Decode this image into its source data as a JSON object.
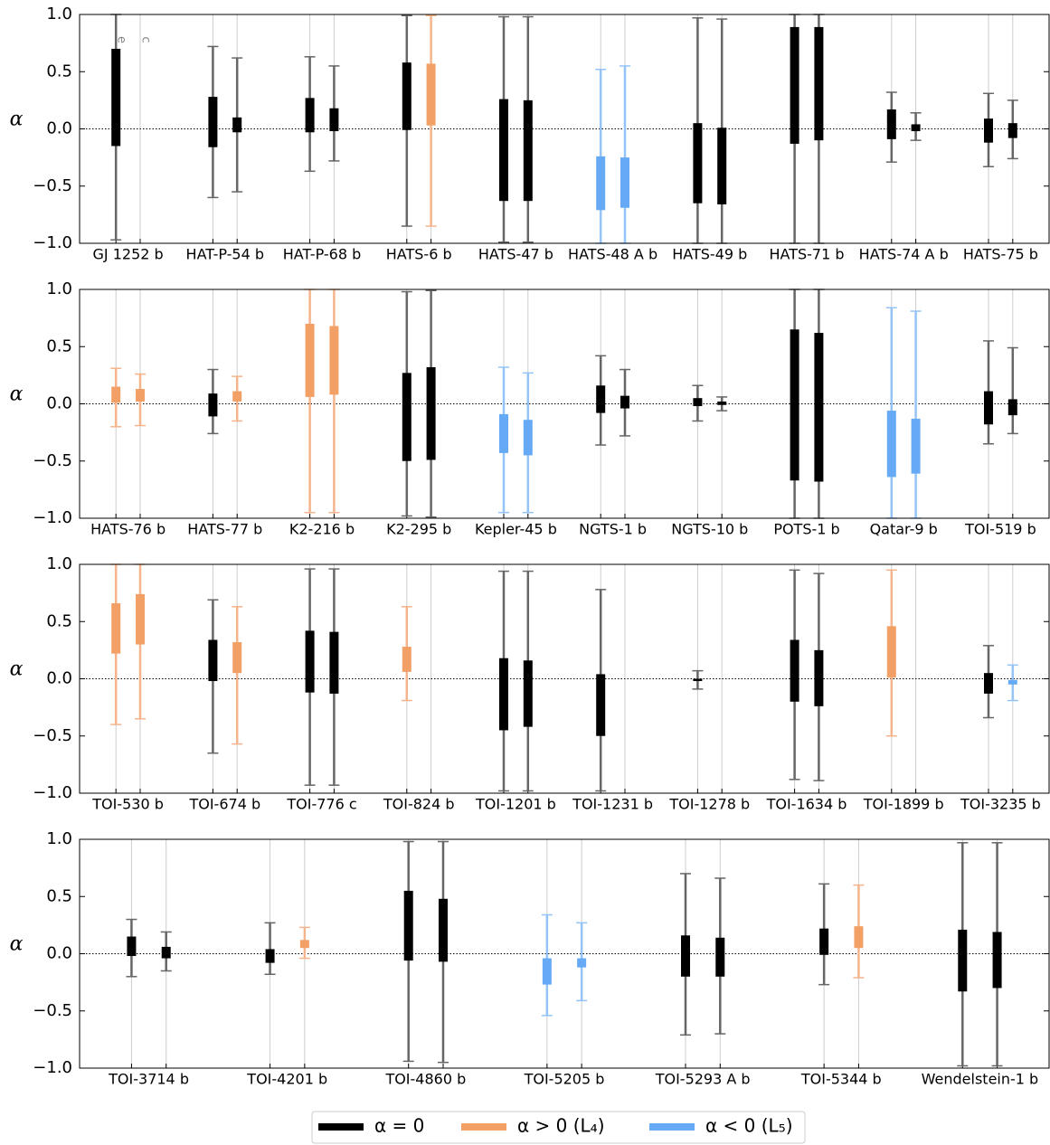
{
  "legend": {
    "entries": [
      {
        "label": "α = 0",
        "color": "#000000",
        "whisker_color": "#666666"
      },
      {
        "label": "α > 0 (L₄)",
        "color": "#f2a066",
        "whisker_color": "#f5b48c"
      },
      {
        "label": "α < 0 (L₅)",
        "color": "#66aaf5",
        "whisker_color": "#94c4f7"
      }
    ]
  },
  "chart_data": [
    {
      "type": "box",
      "y_label": "α",
      "ylim": [
        -1,
        1
      ],
      "hline": 0,
      "yticks": [
        {
          "value": -1,
          "label": "−1.0"
        },
        {
          "value": -0.5,
          "label": "−0.5"
        },
        {
          "value": 0,
          "label": "0.0"
        },
        {
          "value": 0.5,
          "label": "0.5"
        },
        {
          "value": 1,
          "label": "1.0"
        }
      ],
      "annotations": [
        "e",
        "c"
      ],
      "categories": [
        "GJ 1252 b",
        "HAT-P-54 b",
        "HAT-P-68 b",
        "HATS-6 b",
        "HATS-47 b",
        "HATS-48 A b",
        "HATS-49 b",
        "HATS-71 b",
        "HATS-74 A b",
        "HATS-75 b"
      ],
      "estimates": [
        [
          {
            "low": -0.97,
            "q1": -0.15,
            "q3": 0.7,
            "high": 1.0,
            "group": 0
          },
          null
        ],
        [
          {
            "low": -0.6,
            "q1": -0.16,
            "q3": 0.28,
            "high": 0.72,
            "group": 0
          },
          {
            "low": -0.55,
            "q1": -0.03,
            "q3": 0.1,
            "high": 0.62,
            "group": 0
          }
        ],
        [
          {
            "low": -0.37,
            "q1": -0.03,
            "q3": 0.27,
            "high": 0.63,
            "group": 0
          },
          {
            "low": -0.28,
            "q1": -0.02,
            "q3": 0.18,
            "high": 0.55,
            "group": 0
          }
        ],
        [
          {
            "low": -0.85,
            "q1": -0.01,
            "q3": 0.58,
            "high": 0.99,
            "group": 0
          },
          {
            "low": -0.85,
            "q1": 0.03,
            "q3": 0.57,
            "high": 0.99,
            "group": 1
          }
        ],
        [
          {
            "low": -0.99,
            "q1": -0.63,
            "q3": 0.26,
            "high": 0.98,
            "group": 0
          },
          {
            "low": -0.99,
            "q1": -0.63,
            "q3": 0.25,
            "high": 0.98,
            "group": 0
          }
        ],
        [
          {
            "low": -1.0,
            "q1": -0.71,
            "q3": -0.24,
            "high": 0.52,
            "group": 2
          },
          {
            "low": -1.0,
            "q1": -0.69,
            "q3": -0.25,
            "high": 0.55,
            "group": 2
          }
        ],
        [
          {
            "low": -1.0,
            "q1": -0.65,
            "q3": 0.05,
            "high": 0.97,
            "group": 0
          },
          {
            "low": -1.0,
            "q1": -0.66,
            "q3": 0.01,
            "high": 0.96,
            "group": 0
          }
        ],
        [
          {
            "low": -1.0,
            "q1": -0.13,
            "q3": 0.89,
            "high": 1.0,
            "group": 0
          },
          {
            "low": -1.0,
            "q1": -0.1,
            "q3": 0.89,
            "high": 1.0,
            "group": 0
          }
        ],
        [
          {
            "low": -0.29,
            "q1": -0.09,
            "q3": 0.17,
            "high": 0.32,
            "group": 0
          },
          {
            "low": -0.1,
            "q1": -0.02,
            "q3": 0.04,
            "high": 0.14,
            "group": 0
          }
        ],
        [
          {
            "low": -0.33,
            "q1": -0.12,
            "q3": 0.09,
            "high": 0.31,
            "group": 0
          },
          {
            "low": -0.26,
            "q1": -0.08,
            "q3": 0.05,
            "high": 0.25,
            "group": 0
          }
        ]
      ]
    },
    {
      "type": "box",
      "y_label": "α",
      "ylim": [
        -1,
        1
      ],
      "hline": 0,
      "yticks": [
        {
          "value": -1,
          "label": "−1.0"
        },
        {
          "value": -0.5,
          "label": "−0.5"
        },
        {
          "value": 0,
          "label": "0.0"
        },
        {
          "value": 0.5,
          "label": "0.5"
        },
        {
          "value": 1,
          "label": "1.0"
        }
      ],
      "categories": [
        "HATS-76 b",
        "HATS-77 b",
        "K2-216 b",
        "K2-295 b",
        "Kepler-45 b",
        "NGTS-1 b",
        "NGTS-10 b",
        "POTS-1 b",
        "Qatar-9 b",
        "TOI-519 b"
      ],
      "estimates": [
        [
          {
            "low": -0.2,
            "q1": 0.01,
            "q3": 0.15,
            "high": 0.31,
            "group": 1
          },
          {
            "low": -0.19,
            "q1": 0.02,
            "q3": 0.13,
            "high": 0.26,
            "group": 1
          }
        ],
        [
          {
            "low": -0.26,
            "q1": -0.11,
            "q3": 0.09,
            "high": 0.3,
            "group": 0
          },
          {
            "low": -0.15,
            "q1": 0.02,
            "q3": 0.11,
            "high": 0.24,
            "group": 1
          }
        ],
        [
          {
            "low": -0.95,
            "q1": 0.06,
            "q3": 0.7,
            "high": 1.0,
            "group": 1
          },
          {
            "low": -0.95,
            "q1": 0.08,
            "q3": 0.68,
            "high": 1.0,
            "group": 1
          }
        ],
        [
          {
            "low": -0.98,
            "q1": -0.5,
            "q3": 0.27,
            "high": 0.98,
            "group": 0
          },
          {
            "low": -0.99,
            "q1": -0.49,
            "q3": 0.32,
            "high": 0.99,
            "group": 0
          }
        ],
        [
          {
            "low": -0.95,
            "q1": -0.43,
            "q3": -0.09,
            "high": 0.32,
            "group": 2
          },
          {
            "low": -0.95,
            "q1": -0.45,
            "q3": -0.14,
            "high": 0.27,
            "group": 2
          }
        ],
        [
          {
            "low": -0.36,
            "q1": -0.08,
            "q3": 0.16,
            "high": 0.42,
            "group": 0
          },
          {
            "low": -0.28,
            "q1": -0.04,
            "q3": 0.07,
            "high": 0.3,
            "group": 0
          }
        ],
        [
          {
            "low": -0.15,
            "q1": -0.02,
            "q3": 0.05,
            "high": 0.16,
            "group": 0
          },
          {
            "low": -0.06,
            "q1": -0.01,
            "q3": 0.02,
            "high": 0.06,
            "group": 0
          }
        ],
        [
          {
            "low": -1.0,
            "q1": -0.67,
            "q3": 0.65,
            "high": 1.0,
            "group": 0
          },
          {
            "low": -1.0,
            "q1": -0.68,
            "q3": 0.62,
            "high": 1.0,
            "group": 0
          }
        ],
        [
          {
            "low": -1.0,
            "q1": -0.64,
            "q3": -0.06,
            "high": 0.84,
            "group": 2
          },
          {
            "low": -1.0,
            "q1": -0.61,
            "q3": -0.13,
            "high": 0.81,
            "group": 2
          }
        ],
        [
          {
            "low": -0.35,
            "q1": -0.18,
            "q3": 0.11,
            "high": 0.55,
            "group": 0
          },
          {
            "low": -0.26,
            "q1": -0.1,
            "q3": 0.04,
            "high": 0.49,
            "group": 0
          }
        ]
      ]
    },
    {
      "type": "box",
      "y_label": "α",
      "ylim": [
        -1,
        1
      ],
      "hline": 0,
      "yticks": [
        {
          "value": -1,
          "label": "−1.0"
        },
        {
          "value": -0.5,
          "label": "−0.5"
        },
        {
          "value": 0,
          "label": "0.0"
        },
        {
          "value": 0.5,
          "label": "0.5"
        },
        {
          "value": 1,
          "label": "1.0"
        }
      ],
      "categories": [
        "TOI-530 b",
        "TOI-674 b",
        "TOI-776 c",
        "TOI-824 b",
        "TOI-1201 b",
        "TOI-1231 b",
        "TOI-1278 b",
        "TOI-1634 b",
        "TOI-1899 b",
        "TOI-3235 b"
      ],
      "estimates": [
        [
          {
            "low": -0.4,
            "q1": 0.22,
            "q3": 0.66,
            "high": 1.0,
            "group": 1
          },
          {
            "low": -0.35,
            "q1": 0.3,
            "q3": 0.74,
            "high": 1.0,
            "group": 1
          }
        ],
        [
          {
            "low": -0.65,
            "q1": -0.02,
            "q3": 0.34,
            "high": 0.69,
            "group": 0
          },
          {
            "low": -0.57,
            "q1": 0.05,
            "q3": 0.32,
            "high": 0.63,
            "group": 1
          }
        ],
        [
          {
            "low": -0.93,
            "q1": -0.12,
            "q3": 0.42,
            "high": 0.96,
            "group": 0
          },
          {
            "low": -0.93,
            "q1": -0.13,
            "q3": 0.41,
            "high": 0.96,
            "group": 0
          }
        ],
        [
          {
            "low": -0.19,
            "q1": 0.06,
            "q3": 0.28,
            "high": 0.63,
            "group": 1
          },
          null
        ],
        [
          {
            "low": -0.98,
            "q1": -0.45,
            "q3": 0.18,
            "high": 0.94,
            "group": 0
          },
          {
            "low": -0.98,
            "q1": -0.42,
            "q3": 0.16,
            "high": 0.94,
            "group": 0
          }
        ],
        [
          {
            "low": -0.98,
            "q1": -0.5,
            "q3": 0.04,
            "high": 0.78,
            "group": 0
          },
          null
        ],
        [
          {
            "low": -0.09,
            "q1": -0.02,
            "q3": 0.0,
            "high": 0.07,
            "group": 0
          },
          null
        ],
        [
          {
            "low": -0.88,
            "q1": -0.2,
            "q3": 0.34,
            "high": 0.95,
            "group": 0
          },
          {
            "low": -0.89,
            "q1": -0.24,
            "q3": 0.25,
            "high": 0.92,
            "group": 0
          }
        ],
        [
          {
            "low": -0.5,
            "q1": 0.01,
            "q3": 0.46,
            "high": 0.95,
            "group": 1
          },
          null
        ],
        [
          {
            "low": -0.34,
            "q1": -0.13,
            "q3": 0.05,
            "high": 0.29,
            "group": 0
          },
          {
            "low": -0.19,
            "q1": -0.05,
            "q3": -0.01,
            "high": 0.12,
            "group": 2
          }
        ]
      ]
    },
    {
      "type": "box",
      "y_label": "α",
      "ylim": [
        -1,
        1
      ],
      "hline": 0,
      "yticks": [
        {
          "value": -1,
          "label": "−1.0"
        },
        {
          "value": -0.5,
          "label": "−0.5"
        },
        {
          "value": 0,
          "label": "0.0"
        },
        {
          "value": 0.5,
          "label": "0.5"
        },
        {
          "value": 1,
          "label": "1.0"
        }
      ],
      "categories": [
        "TOI-3714 b",
        "TOI-4201 b",
        "TOI-4860 b",
        "TOI-5205 b",
        "TOI-5293 A b",
        "TOI-5344 b",
        "Wendelstein-1 b"
      ],
      "estimates": [
        [
          {
            "low": -0.2,
            "q1": -0.02,
            "q3": 0.15,
            "high": 0.3,
            "group": 0
          },
          {
            "low": -0.15,
            "q1": -0.04,
            "q3": 0.06,
            "high": 0.19,
            "group": 0
          }
        ],
        [
          {
            "low": -0.18,
            "q1": -0.08,
            "q3": 0.04,
            "high": 0.27,
            "group": 0
          },
          {
            "low": -0.04,
            "q1": 0.05,
            "q3": 0.12,
            "high": 0.23,
            "group": 1
          }
        ],
        [
          {
            "low": -0.94,
            "q1": -0.06,
            "q3": 0.55,
            "high": 0.98,
            "group": 0
          },
          {
            "low": -0.95,
            "q1": -0.07,
            "q3": 0.48,
            "high": 0.98,
            "group": 0
          }
        ],
        [
          {
            "low": -0.54,
            "q1": -0.27,
            "q3": -0.04,
            "high": 0.34,
            "group": 2
          },
          {
            "low": -0.41,
            "q1": -0.12,
            "q3": -0.04,
            "high": 0.27,
            "group": 2
          }
        ],
        [
          {
            "low": -0.71,
            "q1": -0.2,
            "q3": 0.16,
            "high": 0.7,
            "group": 0
          },
          {
            "low": -0.7,
            "q1": -0.2,
            "q3": 0.14,
            "high": 0.66,
            "group": 0
          }
        ],
        [
          {
            "low": -0.27,
            "q1": -0.01,
            "q3": 0.22,
            "high": 0.61,
            "group": 0
          },
          {
            "low": -0.21,
            "q1": 0.05,
            "q3": 0.24,
            "high": 0.6,
            "group": 1
          }
        ],
        [
          {
            "low": -0.98,
            "q1": -0.33,
            "q3": 0.21,
            "high": 0.97,
            "group": 0
          },
          {
            "low": -0.98,
            "q1": -0.3,
            "q3": 0.19,
            "high": 0.97,
            "group": 0
          }
        ]
      ]
    }
  ]
}
